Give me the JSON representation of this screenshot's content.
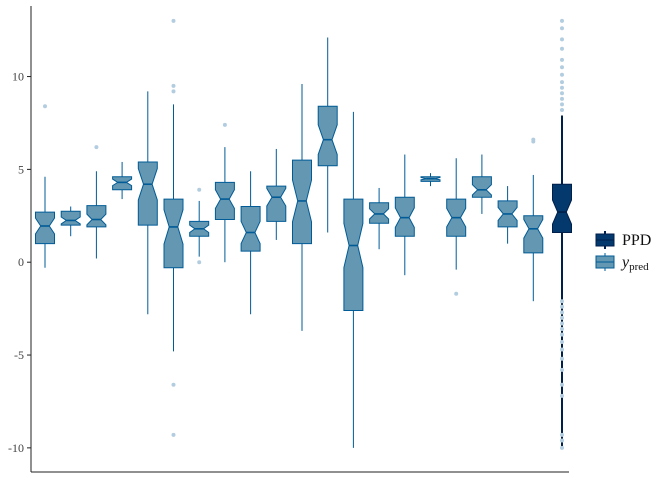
{
  "chart_data": {
    "type": "boxplot",
    "title": "",
    "xlabel": "",
    "ylabel": "",
    "ylim": [
      -11.3,
      13.8
    ],
    "yticks": [
      -10,
      -5,
      0,
      5,
      10
    ],
    "grid": false,
    "legend_position": "right",
    "colors": {
      "ypred_fill": "#6497b1",
      "ypred_line": "#005b96",
      "outlier": "#b3cde0",
      "ppd_fill": "#03396c",
      "ppd_line": "#011f4b",
      "axis": "#222222"
    },
    "legend": [
      {
        "key": "ppd",
        "label": "PPD"
      },
      {
        "key": "ypred",
        "label": "y",
        "subscript": "pred"
      }
    ],
    "series": [
      {
        "name": "y_pred",
        "boxes": [
          {
            "lower": -0.3,
            "q1": 1.0,
            "median": 1.95,
            "q3": 2.7,
            "upper": 4.6,
            "outliers": [
              8.4
            ]
          },
          {
            "lower": 1.4,
            "q1": 2.0,
            "median": 2.25,
            "q3": 2.75,
            "upper": 3.0,
            "outliers": []
          },
          {
            "lower": 0.2,
            "q1": 1.9,
            "median": 2.3,
            "q3": 3.05,
            "upper": 4.9,
            "outliers": [
              6.2
            ]
          },
          {
            "lower": 3.4,
            "q1": 3.9,
            "median": 4.3,
            "q3": 4.6,
            "upper": 5.4,
            "outliers": []
          },
          {
            "lower": -2.8,
            "q1": 2.0,
            "median": 4.2,
            "q3": 5.4,
            "upper": 9.2,
            "outliers": []
          },
          {
            "lower": -4.8,
            "q1": -0.3,
            "median": 1.9,
            "q3": 3.4,
            "upper": 8.5,
            "outliers": [
              13.0,
              9.5,
              9.2,
              -6.6,
              -9.3
            ]
          },
          {
            "lower": 0.3,
            "q1": 1.4,
            "median": 1.8,
            "q3": 2.2,
            "upper": 3.3,
            "outliers": [
              3.9,
              0.0
            ]
          },
          {
            "lower": 0.0,
            "q1": 2.3,
            "median": 3.4,
            "q3": 4.3,
            "upper": 6.2,
            "outliers": [
              7.4
            ]
          },
          {
            "lower": -2.8,
            "q1": 0.6,
            "median": 1.6,
            "q3": 3.0,
            "upper": 4.9,
            "outliers": []
          },
          {
            "lower": 1.2,
            "q1": 2.2,
            "median": 3.5,
            "q3": 4.1,
            "upper": 6.1,
            "outliers": []
          },
          {
            "lower": -3.7,
            "q1": 1.0,
            "median": 3.3,
            "q3": 5.5,
            "upper": 9.6,
            "outliers": []
          },
          {
            "lower": 1.6,
            "q1": 5.2,
            "median": 6.6,
            "q3": 8.4,
            "upper": 12.1,
            "outliers": []
          },
          {
            "lower": -10.0,
            "q1": -2.6,
            "median": 0.9,
            "q3": 3.4,
            "upper": 8.1,
            "outliers": []
          },
          {
            "lower": 0.7,
            "q1": 2.1,
            "median": 2.6,
            "q3": 3.2,
            "upper": 4.0,
            "outliers": []
          },
          {
            "lower": -0.7,
            "q1": 1.4,
            "median": 2.4,
            "q3": 3.5,
            "upper": 5.8,
            "outliers": []
          },
          {
            "lower": 4.1,
            "q1": 4.35,
            "median": 4.5,
            "q3": 4.6,
            "upper": 4.8,
            "outliers": []
          },
          {
            "lower": -0.4,
            "q1": 1.4,
            "median": 2.4,
            "q3": 3.4,
            "upper": 5.6,
            "outliers": [
              -1.7
            ]
          },
          {
            "lower": 2.6,
            "q1": 3.5,
            "median": 3.9,
            "q3": 4.6,
            "upper": 5.8,
            "outliers": []
          },
          {
            "lower": 1.0,
            "q1": 1.9,
            "median": 2.6,
            "q3": 3.3,
            "upper": 4.1,
            "outliers": []
          },
          {
            "lower": -2.1,
            "q1": 0.5,
            "median": 1.8,
            "q3": 2.5,
            "upper": 4.7,
            "outliers": [
              6.6,
              6.5
            ]
          }
        ]
      },
      {
        "name": "PPD",
        "boxes": [
          {
            "lower": -10.0,
            "q1": 1.6,
            "median": 2.7,
            "q3": 4.2,
            "upper": 7.9,
            "outliers": [
              13.0,
              12.6,
              12.0,
              11.5,
              10.9,
              10.5,
              10.1,
              9.7,
              9.4,
              9.1,
              8.8,
              8.5,
              8.2,
              -2.1,
              -2.4,
              -2.7,
              -3.0,
              -3.3,
              -3.6,
              -3.9,
              -4.3,
              -4.7,
              -5.2,
              -5.8,
              -6.6,
              -7.2,
              -9.3,
              -9.6,
              -10.0
            ]
          }
        ]
      }
    ]
  }
}
